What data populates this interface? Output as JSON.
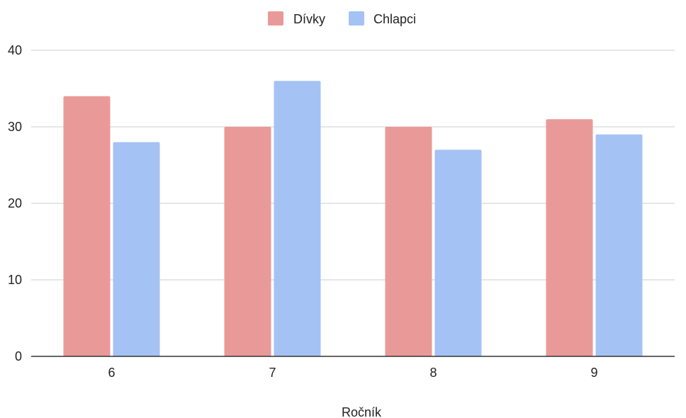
{
  "chart_data": {
    "type": "bar",
    "categories": [
      "6",
      "7",
      "8",
      "9"
    ],
    "series": [
      {
        "name": "Dívky",
        "values": [
          34,
          30,
          30,
          31
        ],
        "color": "#ea9999"
      },
      {
        "name": "Chlapci",
        "values": [
          28,
          36,
          27,
          29
        ],
        "color": "#a4c2f4"
      }
    ],
    "xlabel": "Ročník",
    "ylabel": "",
    "ylim": [
      0,
      40
    ],
    "yticks": [
      "0",
      "10",
      "20",
      "30",
      "40"
    ],
    "grid": true,
    "legend_position": "top-center"
  }
}
